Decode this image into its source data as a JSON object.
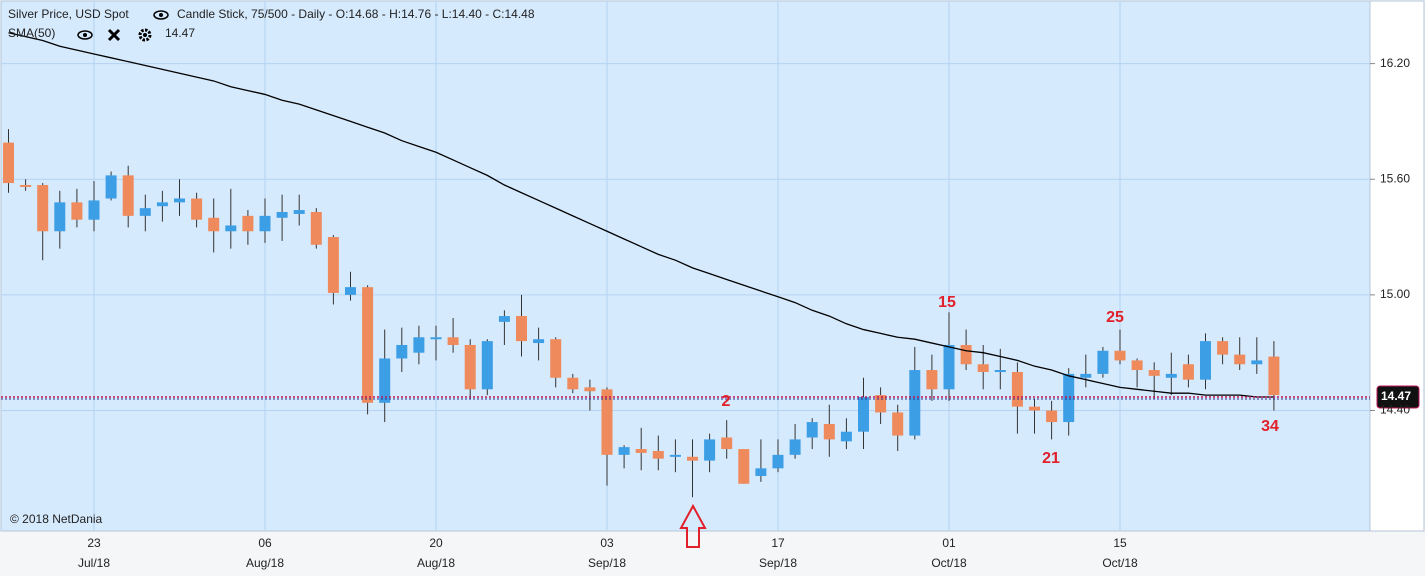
{
  "chart_data": {
    "type": "candlestick",
    "title": "Silver Price, USD Spot",
    "subtitle": "Candle Stick, 75/500 - Daily - O:14.68 - H:14.76 - L:14.40 - C:14.48",
    "copyright": "© 2018 NetDania",
    "categories": [
      null,
      null,
      null,
      null,
      null,
      [
        "23",
        "Jul/18"
      ],
      null,
      null,
      null,
      null,
      null,
      null,
      null,
      null,
      null,
      [
        "06",
        "Aug/18"
      ],
      null,
      null,
      null,
      null,
      null,
      null,
      null,
      null,
      null,
      [
        "20",
        "Aug/18"
      ],
      null,
      null,
      null,
      null,
      null,
      null,
      null,
      null,
      null,
      [
        "03",
        "Sep/18"
      ],
      null,
      null,
      null,
      null,
      null,
      null,
      null,
      null,
      null,
      [
        "17",
        "Sep/18"
      ],
      null,
      null,
      null,
      null,
      null,
      null,
      null,
      null,
      null,
      [
        "01",
        "Oct/18"
      ],
      null,
      null,
      null,
      null,
      null,
      null,
      null,
      null,
      null,
      [
        "15",
        "Oct/18"
      ],
      null,
      null,
      null,
      null,
      null,
      null,
      null,
      null,
      null
    ],
    "open": [
      15.79,
      15.57,
      15.57,
      15.33,
      15.48,
      15.39,
      15.5,
      15.62,
      15.41,
      15.46,
      15.48,
      15.5,
      15.4,
      15.33,
      15.41,
      15.33,
      15.4,
      15.42,
      15.43,
      15.3,
      15.0,
      15.04,
      14.44,
      14.67,
      14.7,
      14.77,
      14.78,
      14.74,
      14.51,
      14.86,
      14.89,
      14.75,
      14.77,
      14.57,
      14.52,
      14.51,
      14.17,
      14.2,
      14.19,
      14.16,
      14.16,
      14.14,
      14.26,
      14.2,
      14.06,
      14.1,
      14.17,
      14.26,
      14.33,
      14.24,
      14.29,
      14.48,
      14.39,
      14.27,
      14.61,
      14.51,
      14.74,
      14.64,
      14.6,
      14.6,
      14.42,
      14.4,
      14.34,
      14.57,
      14.59,
      14.71,
      14.66,
      14.61,
      14.57,
      14.64,
      14.56,
      14.76,
      14.69,
      14.64,
      14.68
    ],
    "high": [
      15.86,
      15.6,
      15.58,
      15.54,
      15.55,
      15.59,
      15.64,
      15.67,
      15.52,
      15.54,
      15.6,
      15.53,
      15.5,
      15.55,
      15.44,
      15.5,
      15.52,
      15.52,
      15.45,
      15.31,
      15.12,
      15.05,
      14.82,
      14.83,
      14.84,
      14.84,
      14.88,
      14.77,
      14.77,
      14.92,
      15.0,
      14.83,
      14.78,
      14.59,
      14.56,
      14.52,
      14.22,
      14.31,
      14.27,
      14.25,
      14.25,
      14.28,
      14.35,
      14.2,
      14.25,
      14.25,
      14.33,
      14.36,
      14.43,
      14.36,
      14.57,
      14.52,
      14.43,
      14.73,
      14.69,
      14.91,
      14.82,
      14.74,
      14.72,
      14.65,
      14.46,
      14.45,
      14.62,
      14.69,
      14.73,
      14.82,
      14.67,
      14.65,
      14.7,
      14.69,
      14.8,
      14.78,
      14.78,
      14.78,
      14.76
    ],
    "low": [
      15.53,
      15.54,
      15.18,
      15.24,
      15.35,
      15.33,
      15.49,
      15.35,
      15.33,
      15.38,
      15.41,
      15.35,
      15.22,
      15.24,
      15.26,
      15.27,
      15.28,
      15.36,
      15.24,
      14.95,
      14.97,
      14.38,
      14.34,
      14.6,
      14.64,
      14.66,
      14.7,
      14.46,
      14.48,
      14.74,
      14.68,
      14.66,
      14.52,
      14.49,
      14.4,
      14.01,
      14.1,
      14.09,
      14.09,
      14.08,
      13.95,
      14.08,
      14.15,
      14.02,
      14.03,
      14.08,
      14.15,
      14.2,
      14.16,
      14.2,
      14.2,
      14.33,
      14.19,
      14.25,
      14.45,
      14.45,
      14.61,
      14.51,
      14.51,
      14.28,
      14.28,
      14.25,
      14.27,
      14.52,
      14.57,
      14.64,
      14.52,
      14.46,
      14.48,
      14.52,
      14.51,
      14.64,
      14.61,
      14.59,
      14.4
    ],
    "close": [
      15.58,
      15.56,
      15.33,
      15.48,
      15.39,
      15.49,
      15.62,
      15.41,
      15.45,
      15.48,
      15.5,
      15.39,
      15.33,
      15.36,
      15.33,
      15.41,
      15.43,
      15.44,
      15.26,
      15.01,
      15.04,
      14.44,
      14.67,
      14.74,
      14.78,
      14.78,
      14.74,
      14.51,
      14.76,
      14.89,
      14.76,
      14.77,
      14.57,
      14.51,
      14.5,
      14.17,
      14.21,
      14.18,
      14.15,
      14.17,
      14.14,
      14.25,
      14.2,
      14.02,
      14.1,
      14.17,
      14.25,
      14.34,
      14.25,
      14.29,
      14.47,
      14.39,
      14.27,
      14.61,
      14.51,
      14.74,
      14.64,
      14.6,
      14.61,
      14.42,
      14.4,
      14.34,
      14.59,
      14.59,
      14.71,
      14.66,
      14.61,
      14.58,
      14.59,
      14.56,
      14.76,
      14.69,
      14.64,
      14.66,
      14.48
    ],
    "up_color": "#3c9ee5",
    "down_color": "#ef8a5c",
    "overlays": [
      {
        "name": "SMA(50)",
        "value_label": "14.47",
        "color": "#000000",
        "values": [
          16.36,
          16.34,
          16.32,
          16.29,
          16.27,
          16.25,
          16.23,
          16.21,
          16.19,
          16.17,
          16.15,
          16.13,
          16.11,
          16.08,
          16.06,
          16.04,
          16.01,
          15.99,
          15.96,
          15.93,
          15.9,
          15.87,
          15.84,
          15.8,
          15.77,
          15.74,
          15.7,
          15.66,
          15.62,
          15.57,
          15.53,
          15.49,
          15.45,
          15.41,
          15.37,
          15.33,
          15.29,
          15.25,
          15.21,
          15.18,
          15.14,
          15.11,
          15.08,
          15.05,
          15.02,
          14.99,
          14.96,
          14.92,
          14.89,
          14.85,
          14.82,
          14.8,
          14.78,
          14.77,
          14.75,
          14.73,
          14.71,
          14.7,
          14.68,
          14.66,
          14.63,
          14.61,
          14.58,
          14.56,
          14.54,
          14.52,
          14.51,
          14.5,
          14.49,
          14.49,
          14.48,
          14.48,
          14.48,
          14.47,
          14.47
        ]
      }
    ],
    "price_line": {
      "value": 14.47,
      "label": "14.47"
    },
    "ylim": [
      13.78,
      16.53
    ],
    "yticks": [
      {
        "value": 16.2,
        "label": "16.20"
      },
      {
        "value": 15.6,
        "label": "15.60"
      },
      {
        "value": 15.0,
        "label": "15.00"
      },
      {
        "value": 14.4,
        "label": "14.40"
      }
    ],
    "grid": true,
    "annotations": [
      "2",
      "15",
      "21",
      "25",
      "34"
    ]
  }
}
